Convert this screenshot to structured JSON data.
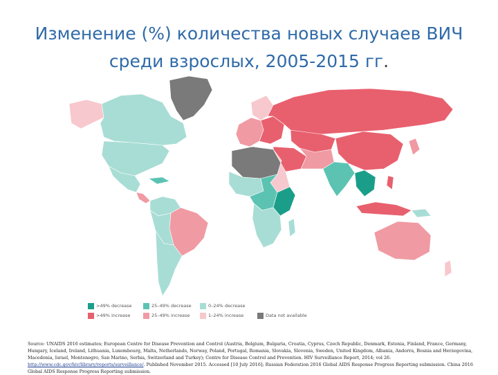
{
  "title": {
    "line1": "Изменение (%) количества новых случаев ВИЧ",
    "line2": "среди взрослых, 2005-2015 гг",
    "dot": "."
  },
  "colors": {
    "decrease_gt49": "#1a9e8a",
    "decrease_25_49": "#5cc3b3",
    "decrease_0_24": "#a8ddd5",
    "increase_gt49": "#e8606e",
    "increase_25_49": "#f09aa3",
    "increase_1_24": "#f7c8cd",
    "not_available": "#7a7a7a"
  },
  "legend": [
    {
      "label": ">49% decrease",
      "color": "#1a9e8a"
    },
    {
      "label": "25–49% decrease",
      "color": "#5cc3b3"
    },
    {
      "label": "0–24% decrease",
      "color": "#a8ddd5"
    },
    {
      "label": ">49% increase",
      "color": "#e8606e"
    },
    {
      "label": "25–49% increase",
      "color": "#f09aa3"
    },
    {
      "label": "1–24% increase",
      "color": "#f7c8cd"
    },
    {
      "label": "Data not available",
      "color": "#7a7a7a"
    }
  ],
  "source": {
    "part1": "Source: UNAIDS 2016 estimates; European Centre for Disease Prevention and Control (Austria, Belgium, Bulgaria, Croatia, Cyprus, Czech Republic, Denmark, Estonia, Finland, France, Germany, Hungary, Iceland, Ireland, Lithuania, Luxembourg, Malta, Netherlands, Norway, Poland, Portugal, Romania, Slovakia, Slovenia, Sweden, United Kingdom, Albania, Andorra, Bosnia and Herzegovina, Macedonia, Israel, Montenegro, San Marino, Serbia, Switzerland and Turkey); Centre for Disease Control and Prevention. HIV Surveillance Report, 2014; vol 26.",
    "link": "http://www.cdc.gov/hiv/library/reports/surveillance/",
    "part2": ". Published November 2015. Accessed [10 July 2016]; Russian Federation 2016 Global AIDS Response Progress Reporting submission. China 2016 Global AIDS Response Progress Reporting submission."
  }
}
